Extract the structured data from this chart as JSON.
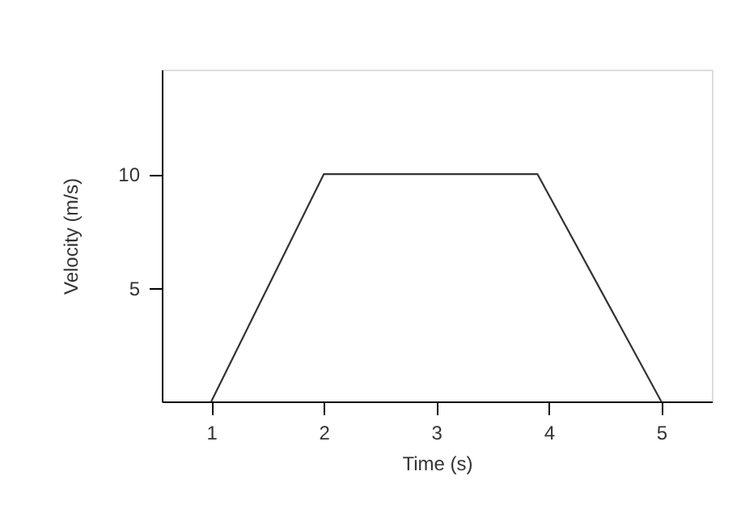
{
  "chart_data": {
    "type": "line",
    "xlabel": "Time (s)",
    "ylabel": "Velocity (m/s)",
    "x": [
      1,
      2,
      3.9,
      5
    ],
    "series": [
      {
        "color": "#333333",
        "values": [
          0,
          10,
          10,
          0
        ]
      }
    ],
    "xlim": [
      0.56,
      5.45
    ],
    "xticks": [
      1,
      2,
      3,
      4,
      5
    ],
    "ylim": [
      0,
      14.6
    ],
    "yticks": [
      5,
      10
    ],
    "grid": false,
    "legend": false,
    "marker": "none",
    "line_style": "solid"
  }
}
